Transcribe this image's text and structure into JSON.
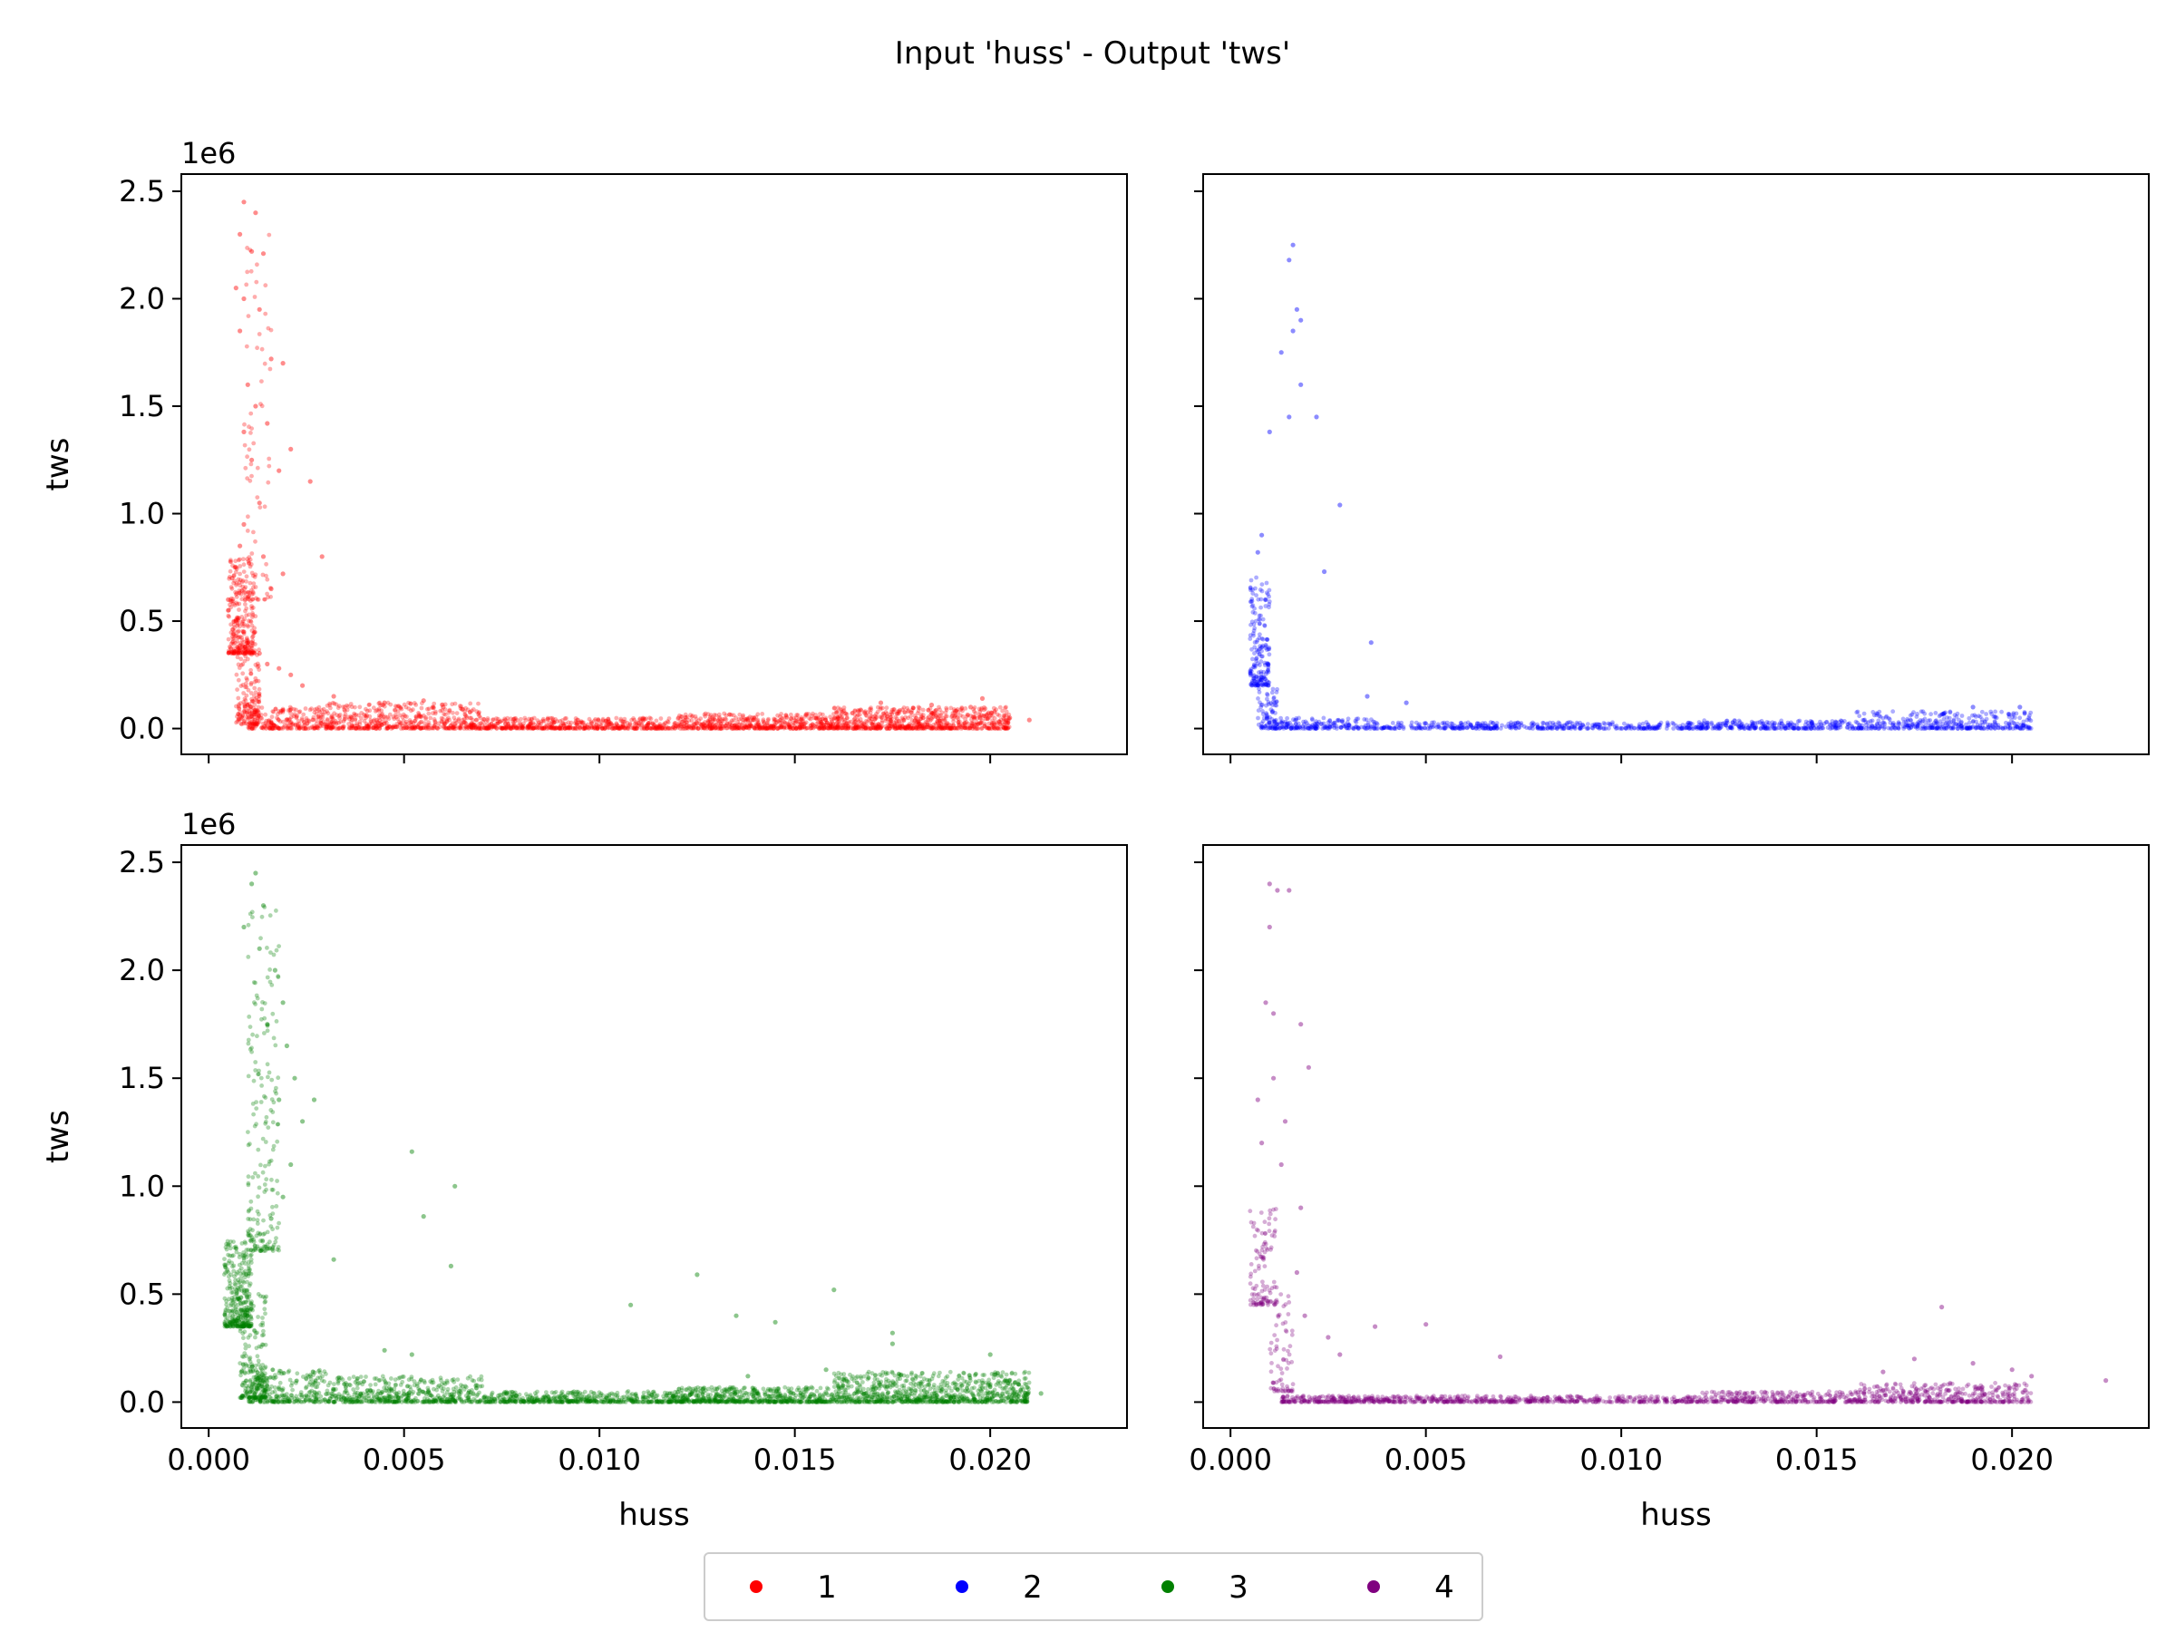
{
  "figure": {
    "title": "Input 'huss' - Output 'tws'"
  },
  "chart_data": [
    {
      "type": "scatter",
      "panel": "top-left",
      "color": "#ff0000",
      "xlabel": "",
      "ylabel": "tws",
      "offset_text": "1e6",
      "xlim": [
        -0.0007,
        0.0235
      ],
      "ylim": [
        -0.12,
        2.58
      ],
      "xticks": [
        "0.000",
        "0.005",
        "0.010",
        "0.015",
        "0.020"
      ],
      "yticks": [
        "0.0",
        "0.5",
        "1.0",
        "1.5",
        "2.0",
        "2.5"
      ],
      "show_xticklabels": false,
      "show_yticklabels": true,
      "series": [
        {
          "name": "1",
          "points": [
            [
              0.0009,
              2.45
            ],
            [
              0.0012,
              2.4
            ],
            [
              0.0008,
              2.3
            ],
            [
              0.0011,
              2.22
            ],
            [
              0.0014,
              2.21
            ],
            [
              0.0007,
              2.05
            ],
            [
              0.0009,
              2.0
            ],
            [
              0.0013,
              1.95
            ],
            [
              0.0016,
              1.72
            ],
            [
              0.0019,
              1.7
            ],
            [
              0.0008,
              1.85
            ],
            [
              0.001,
              1.6
            ],
            [
              0.0012,
              1.5
            ],
            [
              0.0009,
              1.38
            ],
            [
              0.0011,
              1.25
            ],
            [
              0.0015,
              1.42
            ],
            [
              0.0018,
              1.2
            ],
            [
              0.0021,
              1.3
            ],
            [
              0.0026,
              1.15
            ],
            [
              0.0013,
              1.05
            ],
            [
              0.0009,
              0.95
            ],
            [
              0.0008,
              0.85
            ],
            [
              0.0007,
              0.75
            ],
            [
              0.0006,
              0.7
            ],
            [
              0.0005,
              0.6
            ],
            [
              0.0005,
              0.55
            ],
            [
              0.0007,
              0.5
            ],
            [
              0.0009,
              0.45
            ],
            [
              0.0011,
              0.4
            ],
            [
              0.0013,
              0.35
            ],
            [
              0.0015,
              0.3
            ],
            [
              0.0018,
              0.28
            ],
            [
              0.0021,
              0.25
            ],
            [
              0.0024,
              0.2
            ],
            [
              0.0029,
              0.8
            ],
            [
              0.0032,
              0.15
            ],
            [
              0.0016,
              0.65
            ],
            [
              0.0019,
              0.72
            ],
            [
              0.0014,
              0.8
            ],
            [
              0.0045,
              0.12
            ],
            [
              0.0055,
              0.13
            ],
            [
              0.006,
              0.1
            ],
            [
              0.0065,
              0.09
            ],
            [
              0.0172,
              0.12
            ],
            [
              0.0185,
              0.11
            ],
            [
              0.0195,
              0.1
            ],
            [
              0.0198,
              0.14
            ],
            [
              0.0205,
              0.05
            ],
            [
              0.021,
              0.04
            ]
          ],
          "dense_bands": [
            {
              "x": [
                0.0005,
                0.0012
              ],
              "y": [
                0.35,
                0.8
              ],
              "n": 260
            },
            {
              "x": [
                0.0007,
                0.0013
              ],
              "y": [
                0.02,
                0.4
              ],
              "n": 160
            },
            {
              "x": [
                0.0009,
                0.0016
              ],
              "y": [
                0.6,
                2.3
              ],
              "n": 80
            },
            {
              "x": [
                0.001,
                0.003
              ],
              "y": [
                0.0,
                0.1
              ],
              "n": 220
            },
            {
              "x": [
                0.003,
                0.007
              ],
              "y": [
                0.0,
                0.12
              ],
              "n": 500
            },
            {
              "x": [
                0.007,
                0.012
              ],
              "y": [
                0.0,
                0.05
              ],
              "n": 500
            },
            {
              "x": [
                0.012,
                0.016
              ],
              "y": [
                0.0,
                0.07
              ],
              "n": 500
            },
            {
              "x": [
                0.016,
                0.0205
              ],
              "y": [
                0.0,
                0.1
              ],
              "n": 700
            }
          ]
        }
      ]
    },
    {
      "type": "scatter",
      "panel": "top-right",
      "color": "#0000ff",
      "xlabel": "",
      "ylabel": "",
      "offset_text": "",
      "xlim": [
        -0.0007,
        0.0235
      ],
      "ylim": [
        -0.12,
        2.58
      ],
      "xticks": [
        "0.000",
        "0.005",
        "0.010",
        "0.015",
        "0.020"
      ],
      "yticks": [
        "0.0",
        "0.5",
        "1.0",
        "1.5",
        "2.0",
        "2.5"
      ],
      "show_xticklabels": false,
      "show_yticklabels": false,
      "series": [
        {
          "name": "2",
          "points": [
            [
              0.0016,
              2.25
            ],
            [
              0.0015,
              2.18
            ],
            [
              0.0017,
              1.95
            ],
            [
              0.0018,
              1.9
            ],
            [
              0.0016,
              1.85
            ],
            [
              0.0013,
              1.75
            ],
            [
              0.0018,
              1.6
            ],
            [
              0.0015,
              1.45
            ],
            [
              0.0022,
              1.45
            ],
            [
              0.001,
              1.38
            ],
            [
              0.0028,
              1.04
            ],
            [
              0.0008,
              0.9
            ],
            [
              0.0007,
              0.82
            ],
            [
              0.0024,
              0.73
            ],
            [
              0.0036,
              0.4
            ],
            [
              0.0045,
              0.12
            ],
            [
              0.0035,
              0.15
            ],
            [
              0.019,
              0.1
            ],
            [
              0.0202,
              0.1
            ]
          ],
          "dense_bands": [
            {
              "x": [
                0.0005,
                0.001
              ],
              "y": [
                0.2,
                0.75
              ],
              "n": 180
            },
            {
              "x": [
                0.0007,
                0.0012
              ],
              "y": [
                0.0,
                0.25
              ],
              "n": 80
            },
            {
              "x": [
                0.001,
                0.004
              ],
              "y": [
                0.0,
                0.05
              ],
              "n": 200
            },
            {
              "x": [
                0.004,
                0.012
              ],
              "y": [
                0.0,
                0.03
              ],
              "n": 400
            },
            {
              "x": [
                0.012,
                0.016
              ],
              "y": [
                0.0,
                0.04
              ],
              "n": 260
            },
            {
              "x": [
                0.016,
                0.0205
              ],
              "y": [
                0.0,
                0.08
              ],
              "n": 360
            }
          ]
        }
      ]
    },
    {
      "type": "scatter",
      "panel": "bottom-left",
      "color": "#008000",
      "xlabel": "huss",
      "ylabel": "tws",
      "offset_text": "1e6",
      "xlim": [
        -0.0007,
        0.0235
      ],
      "ylim": [
        -0.12,
        2.58
      ],
      "xticks": [
        "0.000",
        "0.005",
        "0.010",
        "0.015",
        "0.020"
      ],
      "yticks": [
        "0.0",
        "0.5",
        "1.0",
        "1.5",
        "2.0",
        "2.5"
      ],
      "show_xticklabels": true,
      "show_yticklabels": true,
      "series": [
        {
          "name": "3",
          "points": [
            [
              0.0012,
              2.45
            ],
            [
              0.0011,
              2.4
            ],
            [
              0.0014,
              2.3
            ],
            [
              0.0009,
              2.2
            ],
            [
              0.0013,
              2.1
            ],
            [
              0.0017,
              2.0
            ],
            [
              0.0019,
              1.85
            ],
            [
              0.0015,
              1.75
            ],
            [
              0.002,
              1.65
            ],
            [
              0.0022,
              1.5
            ],
            [
              0.0018,
              1.4
            ],
            [
              0.0027,
              1.4
            ],
            [
              0.0024,
              1.3
            ],
            [
              0.0021,
              1.1
            ],
            [
              0.0019,
              0.95
            ],
            [
              0.0016,
              0.85
            ],
            [
              0.0052,
              1.16
            ],
            [
              0.0063,
              1.0
            ],
            [
              0.0055,
              0.86
            ],
            [
              0.0062,
              0.63
            ],
            [
              0.0045,
              0.24
            ],
            [
              0.0052,
              0.22
            ],
            [
              0.0032,
              0.66
            ],
            [
              0.0125,
              0.59
            ],
            [
              0.016,
              0.52
            ],
            [
              0.0108,
              0.45
            ],
            [
              0.0135,
              0.4
            ],
            [
              0.0145,
              0.37
            ],
            [
              0.0175,
              0.27
            ],
            [
              0.0138,
              0.12
            ],
            [
              0.0175,
              0.32
            ],
            [
              0.0158,
              0.15
            ],
            [
              0.02,
              0.22
            ],
            [
              0.0213,
              0.04
            ]
          ],
          "dense_bands": [
            {
              "x": [
                0.0004,
                0.0011
              ],
              "y": [
                0.35,
                0.75
              ],
              "n": 320
            },
            {
              "x": [
                0.0008,
                0.0015
              ],
              "y": [
                0.02,
                0.5
              ],
              "n": 200
            },
            {
              "x": [
                0.001,
                0.0018
              ],
              "y": [
                0.7,
                2.3
              ],
              "n": 200
            },
            {
              "x": [
                0.001,
                0.003
              ],
              "y": [
                0.0,
                0.15
              ],
              "n": 260
            },
            {
              "x": [
                0.003,
                0.007
              ],
              "y": [
                0.0,
                0.12
              ],
              "n": 500
            },
            {
              "x": [
                0.007,
                0.012
              ],
              "y": [
                0.0,
                0.05
              ],
              "n": 500
            },
            {
              "x": [
                0.012,
                0.016
              ],
              "y": [
                0.0,
                0.07
              ],
              "n": 550
            },
            {
              "x": [
                0.016,
                0.021
              ],
              "y": [
                0.0,
                0.14
              ],
              "n": 850
            }
          ]
        }
      ]
    },
    {
      "type": "scatter",
      "panel": "bottom-right",
      "color": "#800080",
      "xlabel": "huss",
      "ylabel": "",
      "offset_text": "",
      "xlim": [
        -0.0007,
        0.0235
      ],
      "ylim": [
        -0.12,
        2.58
      ],
      "xticks": [
        "0.000",
        "0.005",
        "0.010",
        "0.015",
        "0.020"
      ],
      "yticks": [
        "0.0",
        "0.5",
        "1.0",
        "1.5",
        "2.0",
        "2.5"
      ],
      "show_xticklabels": true,
      "show_yticklabels": false,
      "series": [
        {
          "name": "4",
          "points": [
            [
              0.001,
              2.4
            ],
            [
              0.0012,
              2.37
            ],
            [
              0.0015,
              2.37
            ],
            [
              0.001,
              2.2
            ],
            [
              0.0009,
              1.85
            ],
            [
              0.0011,
              1.8
            ],
            [
              0.0018,
              1.75
            ],
            [
              0.002,
              1.55
            ],
            [
              0.0011,
              1.5
            ],
            [
              0.0007,
              1.4
            ],
            [
              0.0014,
              1.3
            ],
            [
              0.0008,
              1.2
            ],
            [
              0.0013,
              1.1
            ],
            [
              0.0018,
              0.9
            ],
            [
              0.0017,
              0.6
            ],
            [
              0.0019,
              0.4
            ],
            [
              0.0025,
              0.3
            ],
            [
              0.0028,
              0.22
            ],
            [
              0.0037,
              0.35
            ],
            [
              0.005,
              0.36
            ],
            [
              0.0069,
              0.21
            ],
            [
              0.0167,
              0.14
            ],
            [
              0.0182,
              0.44
            ],
            [
              0.0175,
              0.2
            ],
            [
              0.019,
              0.18
            ],
            [
              0.02,
              0.15
            ],
            [
              0.0205,
              0.12
            ],
            [
              0.0224,
              0.1
            ]
          ],
          "dense_bands": [
            {
              "x": [
                0.0005,
                0.0012
              ],
              "y": [
                0.45,
                0.9
              ],
              "n": 110
            },
            {
              "x": [
                0.001,
                0.0016
              ],
              "y": [
                0.05,
                0.5
              ],
              "n": 70
            },
            {
              "x": [
                0.0013,
                0.004
              ],
              "y": [
                0.0,
                0.03
              ],
              "n": 220
            },
            {
              "x": [
                0.004,
                0.012
              ],
              "y": [
                0.0,
                0.03
              ],
              "n": 480
            },
            {
              "x": [
                0.012,
                0.016
              ],
              "y": [
                0.0,
                0.05
              ],
              "n": 300
            },
            {
              "x": [
                0.016,
                0.0205
              ],
              "y": [
                0.0,
                0.09
              ],
              "n": 420
            }
          ]
        }
      ]
    }
  ],
  "legend": {
    "placement": "bottom-center",
    "items": [
      {
        "label": "1",
        "color": "#ff0000"
      },
      {
        "label": "2",
        "color": "#0000ff"
      },
      {
        "label": "3",
        "color": "#008000"
      },
      {
        "label": "4",
        "color": "#800080"
      }
    ]
  }
}
